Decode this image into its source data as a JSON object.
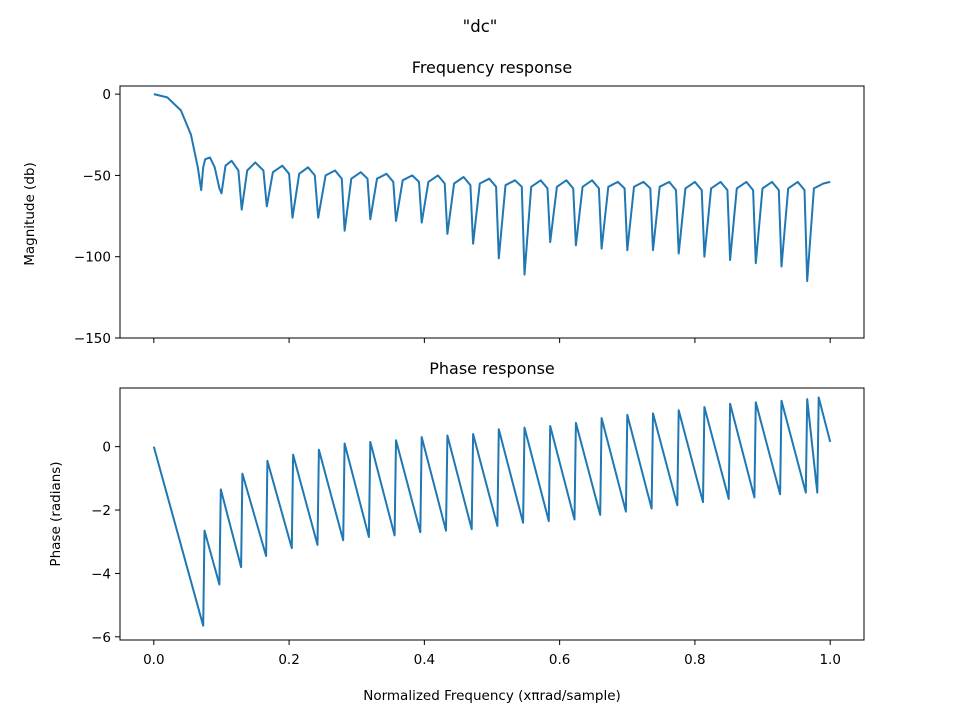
{
  "suptitle": "\"dc\"",
  "chart_data": [
    {
      "type": "line",
      "title": "Frequency response",
      "xlabel": "",
      "ylabel": "Magnitude (db)",
      "xlim": [
        -0.05,
        1.05
      ],
      "ylim": [
        -150,
        5
      ],
      "xticks": [
        0.0,
        0.2,
        0.4,
        0.6,
        0.8,
        1.0
      ],
      "xtick_labels_visible": false,
      "yticks": [
        0,
        -50,
        -100,
        -150
      ],
      "ytick_labels": [
        "0",
        "−50",
        "−100",
        "−150"
      ],
      "grid": false,
      "color": "#1f77b4",
      "series": [
        {
          "x": [
            0.0,
            0.02,
            0.04,
            0.055,
            0.065,
            0.07,
            0.073,
            0.076,
            0.083,
            0.09,
            0.097,
            0.1,
            0.106,
            0.115,
            0.125,
            0.13,
            0.138,
            0.15,
            0.162,
            0.167,
            0.176,
            0.19,
            0.2,
            0.205,
            0.215,
            0.228,
            0.238,
            0.243,
            0.254,
            0.268,
            0.278,
            0.282,
            0.292,
            0.306,
            0.316,
            0.32,
            0.33,
            0.344,
            0.354,
            0.358,
            0.368,
            0.382,
            0.392,
            0.396,
            0.406,
            0.42,
            0.43,
            0.434,
            0.444,
            0.458,
            0.468,
            0.472,
            0.482,
            0.496,
            0.506,
            0.51,
            0.52,
            0.534,
            0.544,
            0.548,
            0.558,
            0.572,
            0.582,
            0.586,
            0.596,
            0.61,
            0.62,
            0.624,
            0.634,
            0.648,
            0.658,
            0.662,
            0.672,
            0.686,
            0.696,
            0.7,
            0.71,
            0.724,
            0.734,
            0.738,
            0.748,
            0.762,
            0.772,
            0.776,
            0.786,
            0.8,
            0.81,
            0.814,
            0.824,
            0.838,
            0.848,
            0.852,
            0.862,
            0.876,
            0.886,
            0.89,
            0.9,
            0.914,
            0.924,
            0.928,
            0.938,
            0.952,
            0.962,
            0.966,
            0.976,
            0.99,
            1.0
          ],
          "y": [
            0,
            -2,
            -10,
            -25,
            -45,
            -59,
            -45,
            -40,
            -39,
            -45,
            -58,
            -61,
            -44,
            -41,
            -47,
            -71,
            -47,
            -42,
            -47,
            -69,
            -48,
            -44,
            -49,
            -76,
            -49,
            -45,
            -50,
            -76,
            -50,
            -47,
            -52,
            -84,
            -52,
            -48,
            -52,
            -77,
            -52,
            -49,
            -54,
            -78,
            -53,
            -50,
            -54,
            -79,
            -54,
            -50,
            -55,
            -86,
            -55,
            -51,
            -56,
            -92,
            -55,
            -52,
            -57,
            -101,
            -56,
            -53,
            -57,
            -111,
            -57,
            -53,
            -58,
            -91,
            -57,
            -53,
            -58,
            -93,
            -57,
            -53,
            -58,
            -95,
            -57,
            -54,
            -58,
            -96,
            -57,
            -54,
            -58,
            -96,
            -57,
            -54,
            -59,
            -98,
            -58,
            -54,
            -59,
            -100,
            -58,
            -54,
            -59,
            -102,
            -58,
            -54,
            -59,
            -104,
            -58,
            -54,
            -59,
            -106,
            -58,
            -54,
            -59,
            -115,
            -58,
            -55,
            -54
          ]
        }
      ]
    },
    {
      "type": "line",
      "title": "Phase response",
      "xlabel": "Normalized Frequency (xπrad/sample)",
      "ylabel": "Phase (radians)",
      "xlim": [
        -0.05,
        1.05
      ],
      "ylim": [
        -6.1,
        1.85
      ],
      "xticks": [
        0.0,
        0.2,
        0.4,
        0.6,
        0.8,
        1.0
      ],
      "xtick_labels": [
        "0.0",
        "0.2",
        "0.4",
        "0.6",
        "0.8",
        "1.0"
      ],
      "yticks": [
        0,
        -2,
        -4,
        -6
      ],
      "ytick_labels": [
        "0",
        "−2",
        "−4",
        "−6"
      ],
      "grid": false,
      "color": "#1f77b4",
      "series": [
        {
          "x": [
            0.0,
            0.073,
            0.075,
            0.097,
            0.099,
            0.129,
            0.131,
            0.166,
            0.168,
            0.204,
            0.206,
            0.242,
            0.244,
            0.28,
            0.282,
            0.318,
            0.32,
            0.356,
            0.358,
            0.394,
            0.396,
            0.432,
            0.434,
            0.47,
            0.472,
            0.508,
            0.51,
            0.546,
            0.548,
            0.584,
            0.586,
            0.622,
            0.624,
            0.66,
            0.662,
            0.698,
            0.7,
            0.736,
            0.738,
            0.774,
            0.776,
            0.812,
            0.814,
            0.85,
            0.852,
            0.888,
            0.89,
            0.926,
            0.928,
            0.964,
            0.966,
            0.981,
            0.983,
            1.0
          ],
          "y": [
            0.0,
            -5.65,
            -2.65,
            -4.35,
            -1.35,
            -3.8,
            -0.85,
            -3.45,
            -0.45,
            -3.2,
            -0.25,
            -3.1,
            -0.1,
            -2.95,
            0.1,
            -2.85,
            0.15,
            -2.8,
            0.2,
            -2.7,
            0.3,
            -2.65,
            0.35,
            -2.6,
            0.4,
            -2.5,
            0.55,
            -2.4,
            0.6,
            -2.35,
            0.65,
            -2.3,
            0.75,
            -2.15,
            0.9,
            -2.05,
            1.0,
            -1.95,
            1.05,
            -1.85,
            1.15,
            -1.75,
            1.25,
            -1.65,
            1.35,
            -1.6,
            1.4,
            -1.5,
            1.45,
            -1.45,
            1.5,
            -1.45,
            1.55,
            0.15
          ]
        }
      ]
    }
  ]
}
